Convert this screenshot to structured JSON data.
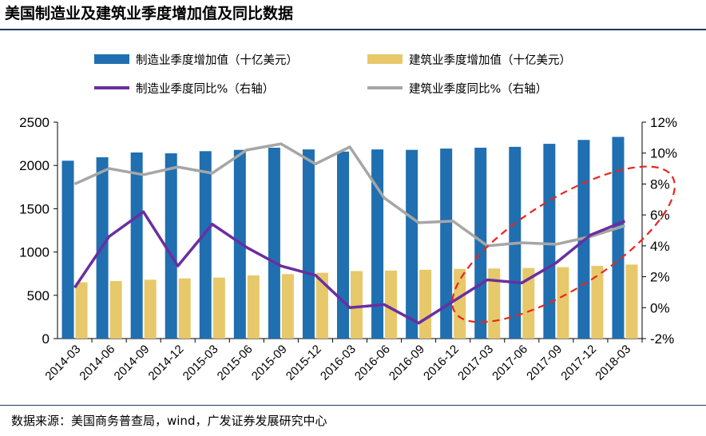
{
  "title": "美国制造业及建筑业季度增加值及同比数据",
  "source": "数据来源：美国商务普查局，wind，广发证券发展研究中心",
  "colors": {
    "manufacturing_bar": "#1f6fb1",
    "construction_bar": "#e7c86a",
    "manufacturing_line": "#6a2ea0",
    "construction_line": "#a6a6a6",
    "annotation": "#e8261f"
  },
  "chart_data": {
    "type": "bar+line",
    "categories": [
      "2014-03",
      "2014-06",
      "2014-09",
      "2014-12",
      "2015-03",
      "2015-06",
      "2015-09",
      "2015-12",
      "2016-03",
      "2016-06",
      "2016-09",
      "2016-12",
      "2017-03",
      "2017-06",
      "2017-09",
      "2017-12",
      "2018-03"
    ],
    "left_axis": {
      "min": 0,
      "max": 2500,
      "ticks": [
        "0",
        "500",
        "1000",
        "1500",
        "2000",
        "2500"
      ]
    },
    "right_axis": {
      "min": -2,
      "max": 12,
      "ticks": [
        "-2%",
        "0%",
        "2%",
        "4%",
        "6%",
        "8%",
        "10%",
        "12%"
      ]
    },
    "series": [
      {
        "name": "制造业季度增加值（十亿美元）",
        "kind": "bar",
        "axis": "left",
        "values": [
          2055,
          2095,
          2150,
          2140,
          2165,
          2180,
          2205,
          2185,
          2160,
          2185,
          2180,
          2195,
          2205,
          2215,
          2250,
          2295,
          2330
        ]
      },
      {
        "name": "建筑业季度增加值（十亿美元）",
        "kind": "bar",
        "axis": "left",
        "values": [
          650,
          665,
          680,
          695,
          705,
          730,
          745,
          760,
          780,
          785,
          795,
          805,
          810,
          815,
          825,
          840,
          855
        ]
      },
      {
        "name": "制造业季度同比%（右轴）",
        "kind": "line",
        "axis": "right",
        "values": [
          1.3,
          4.6,
          6.2,
          2.7,
          5.4,
          3.9,
          2.7,
          2.1,
          0.0,
          0.2,
          -1.0,
          0.4,
          1.8,
          1.6,
          2.9,
          4.7,
          5.6
        ]
      },
      {
        "name": "建筑业季度同比%（右轴）",
        "kind": "line",
        "axis": "right",
        "values": [
          8.0,
          9.0,
          8.6,
          9.1,
          8.7,
          10.2,
          10.6,
          9.3,
          10.4,
          7.1,
          5.5,
          5.6,
          4.0,
          4.2,
          4.1,
          4.6,
          5.3
        ]
      }
    ],
    "annotations": [
      "dashed red ellipse highlighting 2016-12 to 2018-03"
    ]
  }
}
